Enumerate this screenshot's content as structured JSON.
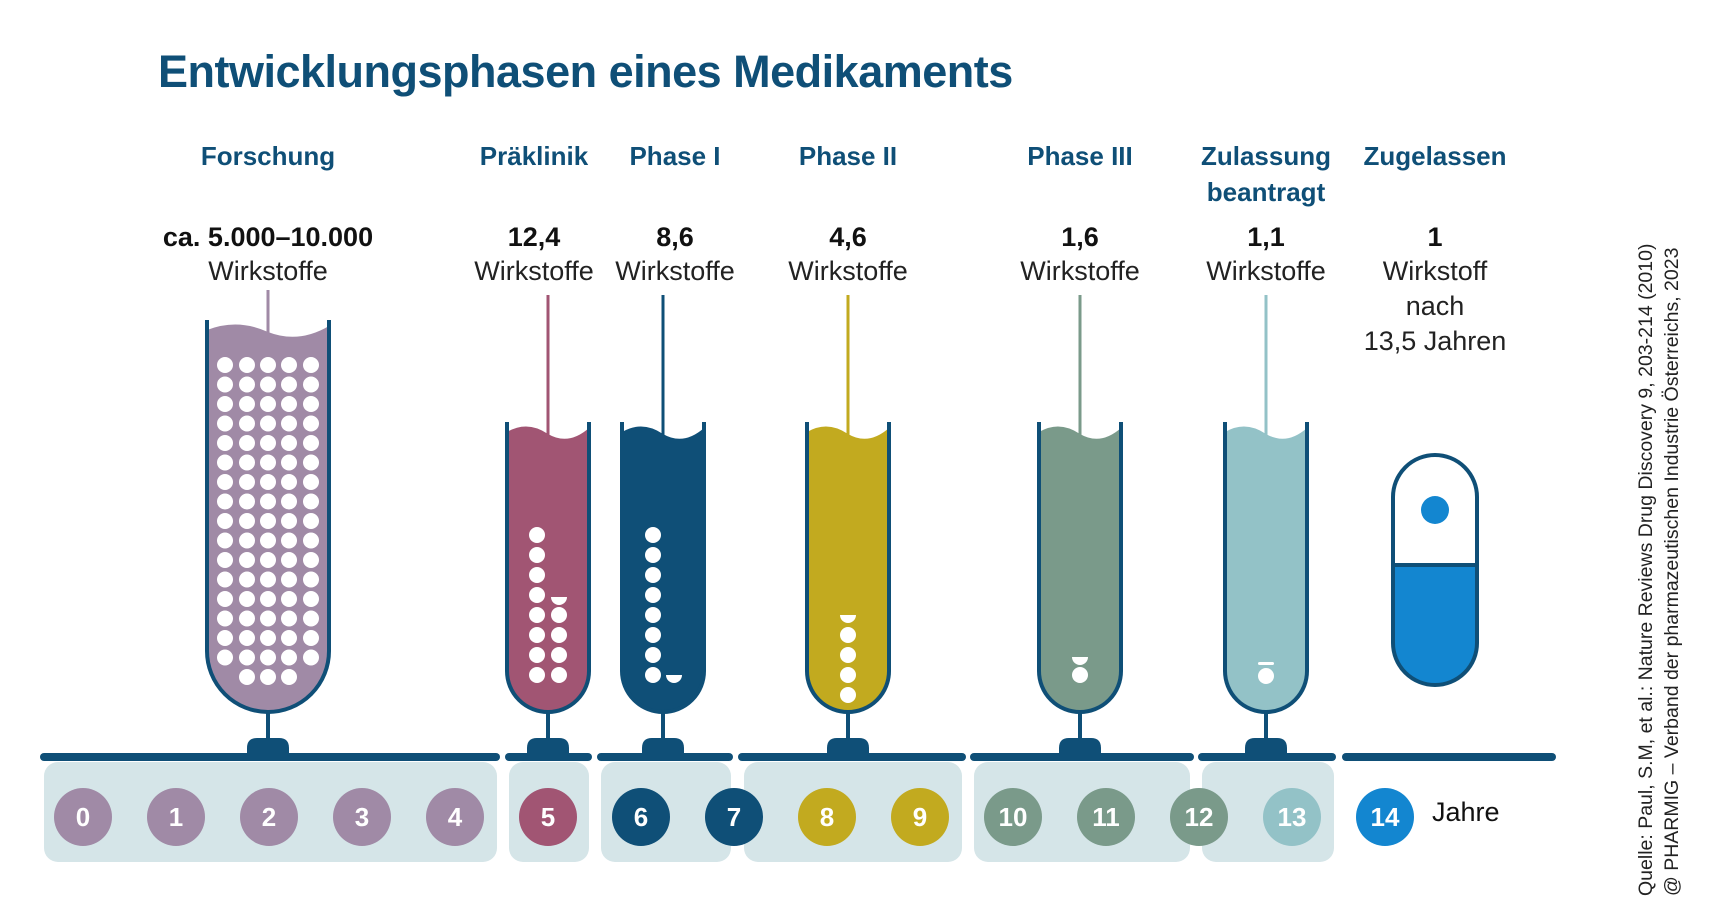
{
  "title": "Entwicklungsphasen eines Medikaments",
  "phases": [
    {
      "label": "Forschung",
      "count": "ca. 5.000–10.000",
      "unit": "Wirkstoffe",
      "color": "#a08aa6"
    },
    {
      "label": "Präklinik",
      "count": "12,4",
      "unit": "Wirkstoffe",
      "color": "#a15573"
    },
    {
      "label": "Phase I",
      "count": "8,6",
      "unit": "Wirkstoffe",
      "color": "#0f4f77"
    },
    {
      "label": "Phase II",
      "count": "4,6",
      "unit": "Wirkstoffe",
      "color": "#c2aa1f"
    },
    {
      "label": "Phase III",
      "count": "1,6",
      "unit": "Wirkstoffe",
      "color": "#7a9a8a"
    },
    {
      "label": "Zulassung beantragt",
      "count": "1,1",
      "unit": "Wirkstoffe",
      "color": "#93c2c7"
    },
    {
      "label": "Zugelassen",
      "count": "1",
      "unit_lines": [
        "Wirkstoff",
        "nach",
        "13,5 Jahren"
      ],
      "color": "#1386d0"
    }
  ],
  "years": [
    "0",
    "1",
    "2",
    "3",
    "4",
    "5",
    "6",
    "7",
    "8",
    "9",
    "10",
    "11",
    "12",
    "13",
    "14"
  ],
  "years_label": "Jahre",
  "source_lines": [
    "Quelle: Paul, S.M, et al.: Nature Reviews Drug Discovery 9, 203-214 (2010)",
    "@ PHARMIG – Verband der pharmazeutischen Industrie Österreichs, 2023"
  ]
}
